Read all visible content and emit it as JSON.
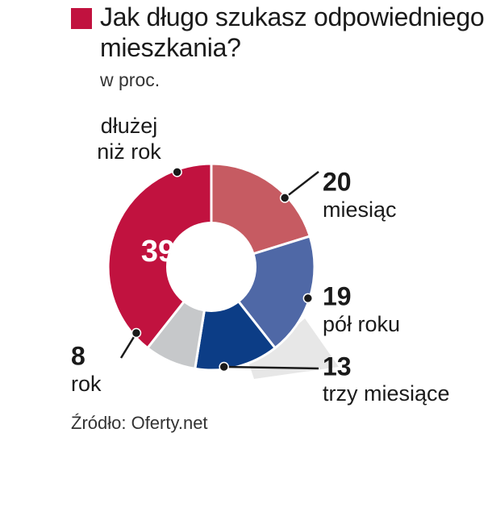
{
  "title": "Jak długo szukasz odpowiedniego mieszkania?",
  "subtitle": "w proc.",
  "source": "Źródło: Oferty.net",
  "chart_data": {
    "type": "pie",
    "variant": "donut",
    "title": "Jak długo szukasz odpowiedniego mieszkania?",
    "subtitle": "w proc.",
    "slices": [
      {
        "label": "miesiąc",
        "value": 20,
        "color": "#c65b62"
      },
      {
        "label": "pół roku",
        "value": 19,
        "color": "#4f68a6"
      },
      {
        "label": "trzy miesiące",
        "value": 13,
        "color": "#0c3d86"
      },
      {
        "label": "rok",
        "value": 8,
        "color": "#c6c8ca"
      },
      {
        "label": "dłużej niż rok",
        "value": 39,
        "color": "#c1123f"
      }
    ]
  }
}
